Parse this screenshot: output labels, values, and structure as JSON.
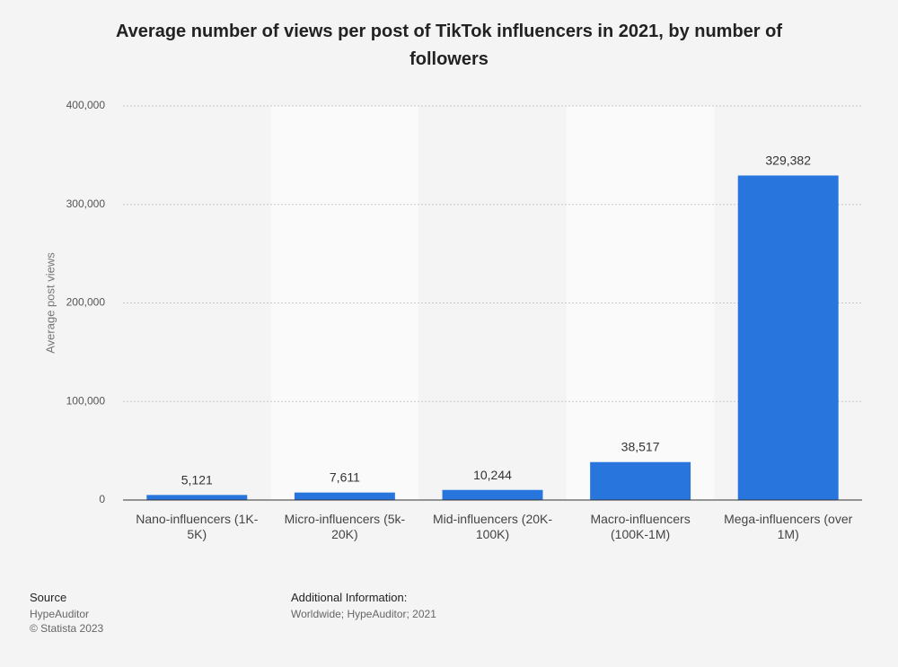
{
  "chart_data": {
    "type": "bar",
    "title": "Average number of views per post of TikTok influencers in 2021, by number of followers",
    "y_label": "Average post views",
    "categories": [
      "Nano-influencers (1K-5K)",
      "Micro-influencers (5k-20K)",
      "Mid-influencers (20K-100K)",
      "Macro-influencers (100K-1M)",
      "Mega-influencers (over 1M)"
    ],
    "values": [
      5121,
      7611,
      10244,
      38517,
      329382
    ],
    "value_labels": [
      "5,121",
      "7,611",
      "10,244",
      "38,517",
      "329,382"
    ],
    "color": "#2876dd",
    "ylim": [
      0,
      400000
    ],
    "yticks": [
      0,
      {
        "value": 100000,
        "label": "100,000"
      },
      {
        "value": 200000,
        "label": "200,000"
      },
      {
        "value": 300000,
        "label": "300,000"
      },
      {
        "value": 400000,
        "label": "400,000"
      }
    ],
    "grid": true
  },
  "footer": {
    "source_heading": "Source",
    "source": "HypeAuditor",
    "copyright": "© Statista 2023",
    "info_heading": "Additional Information:",
    "info": "Worldwide; HypeAuditor; 2021"
  }
}
